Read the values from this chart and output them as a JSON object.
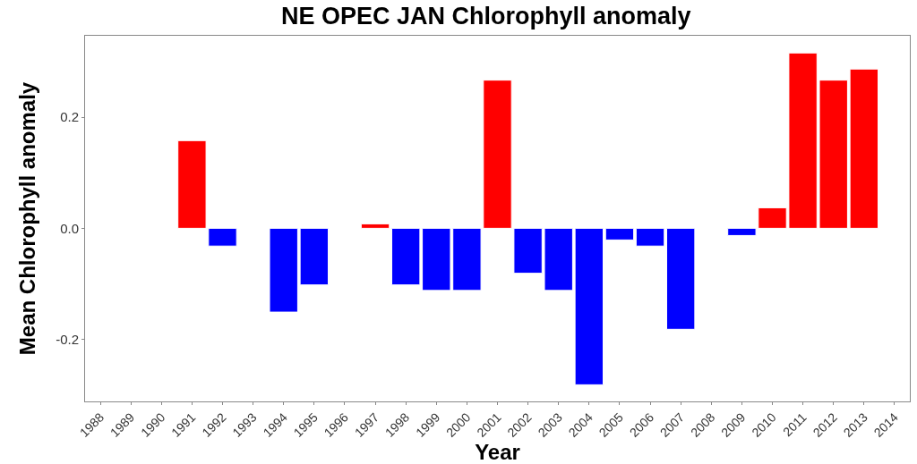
{
  "chart_data": {
    "type": "bar",
    "title": "NE OPEC JAN Chlorophyll anomaly",
    "xlabel": "Year",
    "ylabel": "Mean Chlorophyll anomaly",
    "categories": [
      "1988",
      "1989",
      "1990",
      "1991",
      "1992",
      "1993",
      "1994",
      "1995",
      "1996",
      "1997",
      "1998",
      "1999",
      "2000",
      "2001",
      "2002",
      "2003",
      "2004",
      "2005",
      "2006",
      "2007",
      "2008",
      "2009",
      "2010",
      "2011",
      "2012",
      "2013",
      "2014"
    ],
    "values": [
      null,
      null,
      null,
      0.158,
      -0.032,
      null,
      -0.151,
      -0.102,
      null,
      0.008,
      -0.102,
      -0.112,
      -0.112,
      0.267,
      -0.081,
      -0.112,
      -0.282,
      -0.021,
      -0.032,
      -0.182,
      null,
      -0.013,
      0.037,
      0.316,
      0.267,
      0.287,
      null
    ],
    "colors": [
      "#0000ff",
      "#0000ff",
      "#0000ff",
      "#ff0000",
      "#0000ff",
      "#0000ff",
      "#0000ff",
      "#0000ff",
      "#0000ff",
      "#ff0000",
      "#0000ff",
      "#0000ff",
      "#0000ff",
      "#ff0000",
      "#0000ff",
      "#0000ff",
      "#0000ff",
      "#0000ff",
      "#0000ff",
      "#0000ff",
      "#0000ff",
      "#0000ff",
      "#ff0000",
      "#ff0000",
      "#ff0000",
      "#ff0000",
      "#0000ff"
    ],
    "ylim": [
      -0.312,
      0.347
    ],
    "yticks": [
      {
        "value": -0.2,
        "label": "-0.2"
      },
      {
        "value": 0,
        "label": "0.0"
      },
      {
        "value": 0.2,
        "label": "0.2"
      }
    ]
  }
}
